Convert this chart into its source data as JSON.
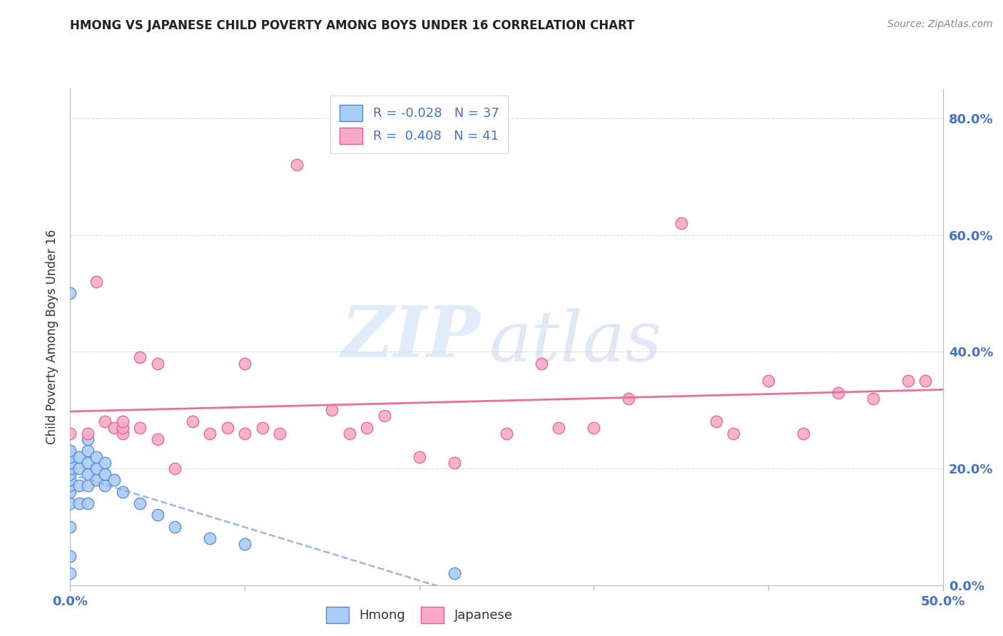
{
  "title": "HMONG VS JAPANESE CHILD POVERTY AMONG BOYS UNDER 16 CORRELATION CHART",
  "source": "Source: ZipAtlas.com",
  "ylabel_label": "Child Poverty Among Boys Under 16",
  "watermark_zip": "ZIP",
  "watermark_atlas": "atlas",
  "legend_label1": "R = -0.028   N = 37",
  "legend_label2": "R =  0.408   N = 41",
  "xlim": [
    0.0,
    0.5
  ],
  "ylim": [
    0.0,
    0.85
  ],
  "xtick_positions": [
    0.0,
    0.1,
    0.2,
    0.3,
    0.4,
    0.5
  ],
  "xtick_labels": [
    "0.0%",
    "",
    "",
    "",
    "",
    "50.0%"
  ],
  "ytick_positions": [
    0.0,
    0.2,
    0.4,
    0.6,
    0.8
  ],
  "right_ytick_labels": [
    "0.0%",
    "20.0%",
    "40.0%",
    "60.0%",
    "80.0%"
  ],
  "hmong_color": "#aaccf8",
  "hmong_edge_color": "#5588cc",
  "japanese_color": "#f8aac8",
  "japanese_edge_color": "#e06090",
  "hmong_line_color": "#88aade",
  "japanese_line_color": "#e87098",
  "grid_color": "#dddddd",
  "title_color": "#222222",
  "tick_color_blue": "#4472c4",
  "background_color": "#ffffff",
  "hmong_x": [
    0.0,
    0.0,
    0.0,
    0.0,
    0.0,
    0.0,
    0.0,
    0.0,
    0.0,
    0.0,
    0.0,
    0.0,
    0.0,
    0.005,
    0.005,
    0.005,
    0.005,
    0.01,
    0.01,
    0.01,
    0.01,
    0.01,
    0.01,
    0.015,
    0.015,
    0.015,
    0.02,
    0.02,
    0.02,
    0.025,
    0.03,
    0.04,
    0.05,
    0.06,
    0.08,
    0.1,
    0.22
  ],
  "hmong_y": [
    0.02,
    0.05,
    0.1,
    0.14,
    0.16,
    0.17,
    0.18,
    0.19,
    0.2,
    0.21,
    0.22,
    0.23,
    0.5,
    0.14,
    0.17,
    0.2,
    0.22,
    0.14,
    0.17,
    0.19,
    0.21,
    0.23,
    0.25,
    0.18,
    0.2,
    0.22,
    0.17,
    0.19,
    0.21,
    0.18,
    0.16,
    0.14,
    0.12,
    0.1,
    0.08,
    0.07,
    0.02
  ],
  "japanese_x": [
    0.0,
    0.01,
    0.015,
    0.02,
    0.025,
    0.03,
    0.03,
    0.03,
    0.04,
    0.04,
    0.05,
    0.05,
    0.06,
    0.07,
    0.08,
    0.09,
    0.1,
    0.1,
    0.11,
    0.12,
    0.13,
    0.15,
    0.16,
    0.17,
    0.18,
    0.2,
    0.22,
    0.25,
    0.27,
    0.28,
    0.3,
    0.32,
    0.35,
    0.37,
    0.38,
    0.4,
    0.42,
    0.44,
    0.46,
    0.48,
    0.49
  ],
  "japanese_y": [
    0.26,
    0.26,
    0.52,
    0.28,
    0.27,
    0.26,
    0.27,
    0.28,
    0.27,
    0.39,
    0.25,
    0.38,
    0.2,
    0.28,
    0.26,
    0.27,
    0.26,
    0.38,
    0.27,
    0.26,
    0.72,
    0.3,
    0.26,
    0.27,
    0.29,
    0.22,
    0.21,
    0.26,
    0.38,
    0.27,
    0.27,
    0.32,
    0.62,
    0.28,
    0.26,
    0.35,
    0.26,
    0.33,
    0.32,
    0.35,
    0.35
  ]
}
